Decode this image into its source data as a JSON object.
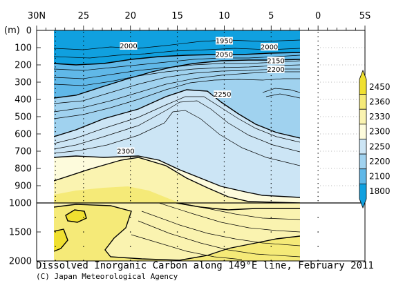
{
  "chart_data": {
    "type": "heatmap",
    "title": "Dissolved Inorganic Carbon along 149°E line, February 2011",
    "credit": "(C) Japan Meteorological Agency",
    "x_unit_label": "",
    "y_unit_label": "(m)",
    "x_ticks": [
      "30N",
      "25",
      "20",
      "15",
      "10",
      "5",
      "0",
      "5S"
    ],
    "x_tick_values": [
      30,
      25,
      20,
      15,
      10,
      5,
      0,
      -5
    ],
    "xlim": [
      30,
      -5
    ],
    "y_upper_ticks": [
      "0",
      "100",
      "200",
      "300",
      "400",
      "500",
      "600",
      "700",
      "800",
      "900",
      "1000"
    ],
    "y_upper_values": [
      0,
      100,
      200,
      300,
      400,
      500,
      600,
      700,
      800,
      900,
      1000
    ],
    "y_lower_ticks": [
      "1500",
      "2000"
    ],
    "y_lower_values": [
      1500,
      2000
    ],
    "ylim": [
      0,
      2000
    ],
    "axis_break_depth": 1000,
    "data_extent_lat": [
      28,
      0
    ],
    "station_lats": [
      28,
      25,
      20,
      15,
      10,
      5,
      0
    ],
    "colorbar": {
      "labels": [
        "2450",
        "2360",
        "2330",
        "2300",
        "2250",
        "2200",
        "2100",
        "1800"
      ],
      "colors": [
        "#f0e030",
        "#f5ea78",
        "#faf3b0",
        "#fdfbdc",
        "#cce5f5",
        "#a0d2ef",
        "#60b8e8",
        "#10a0df"
      ]
    },
    "contour_labels": [
      {
        "text": "1950",
        "lat": 10,
        "depth": 60
      },
      {
        "text": "2000",
        "lat": 20.2,
        "depth": 90
      },
      {
        "text": "2000",
        "lat": 5.2,
        "depth": 95
      },
      {
        "text": "2050",
        "lat": 10,
        "depth": 140
      },
      {
        "text": "2150",
        "lat": 4.5,
        "depth": 175
      },
      {
        "text": "2200",
        "lat": 4.5,
        "depth": 225
      },
      {
        "text": "2250",
        "lat": 10.2,
        "depth": 370
      },
      {
        "text": "2300",
        "lat": 20.5,
        "depth": 700
      }
    ]
  }
}
